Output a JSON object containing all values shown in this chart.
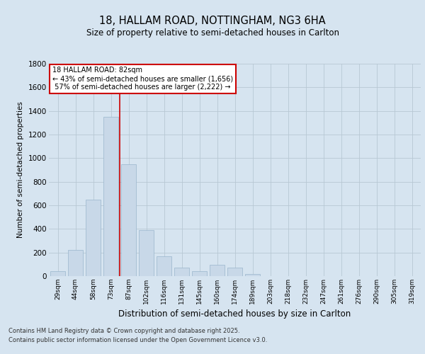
{
  "title1": "18, HALLAM ROAD, NOTTINGHAM, NG3 6HA",
  "title2": "Size of property relative to semi-detached houses in Carlton",
  "xlabel": "Distribution of semi-detached houses by size in Carlton",
  "ylabel": "Number of semi-detached properties",
  "categories": [
    "29sqm",
    "44sqm",
    "58sqm",
    "73sqm",
    "87sqm",
    "102sqm",
    "116sqm",
    "131sqm",
    "145sqm",
    "160sqm",
    "174sqm",
    "189sqm",
    "203sqm",
    "218sqm",
    "232sqm",
    "247sqm",
    "261sqm",
    "276sqm",
    "290sqm",
    "305sqm",
    "319sqm"
  ],
  "values": [
    40,
    220,
    650,
    1350,
    950,
    390,
    170,
    70,
    45,
    95,
    70,
    20,
    0,
    0,
    0,
    0,
    0,
    0,
    0,
    0,
    0
  ],
  "bar_color": "#c8d8e8",
  "bar_edge_color": "#9ab5cc",
  "red_line_x": 3.5,
  "property_label": "18 HALLAM ROAD: 82sqm",
  "pct_smaller": 43,
  "count_smaller": 1656,
  "pct_larger": 57,
  "count_larger": 2222,
  "annotation_box_color": "#ffffff",
  "annotation_box_edge": "#cc0000",
  "red_line_color": "#cc0000",
  "background_color": "#d6e4f0",
  "plot_bg_color": "#d6e4f0",
  "grid_color": "#c0cfd8",
  "ylim": [
    0,
    1800
  ],
  "yticks": [
    0,
    200,
    400,
    600,
    800,
    1000,
    1200,
    1400,
    1600,
    1800
  ],
  "footer1": "Contains HM Land Registry data © Crown copyright and database right 2025.",
  "footer2": "Contains public sector information licensed under the Open Government Licence v3.0."
}
